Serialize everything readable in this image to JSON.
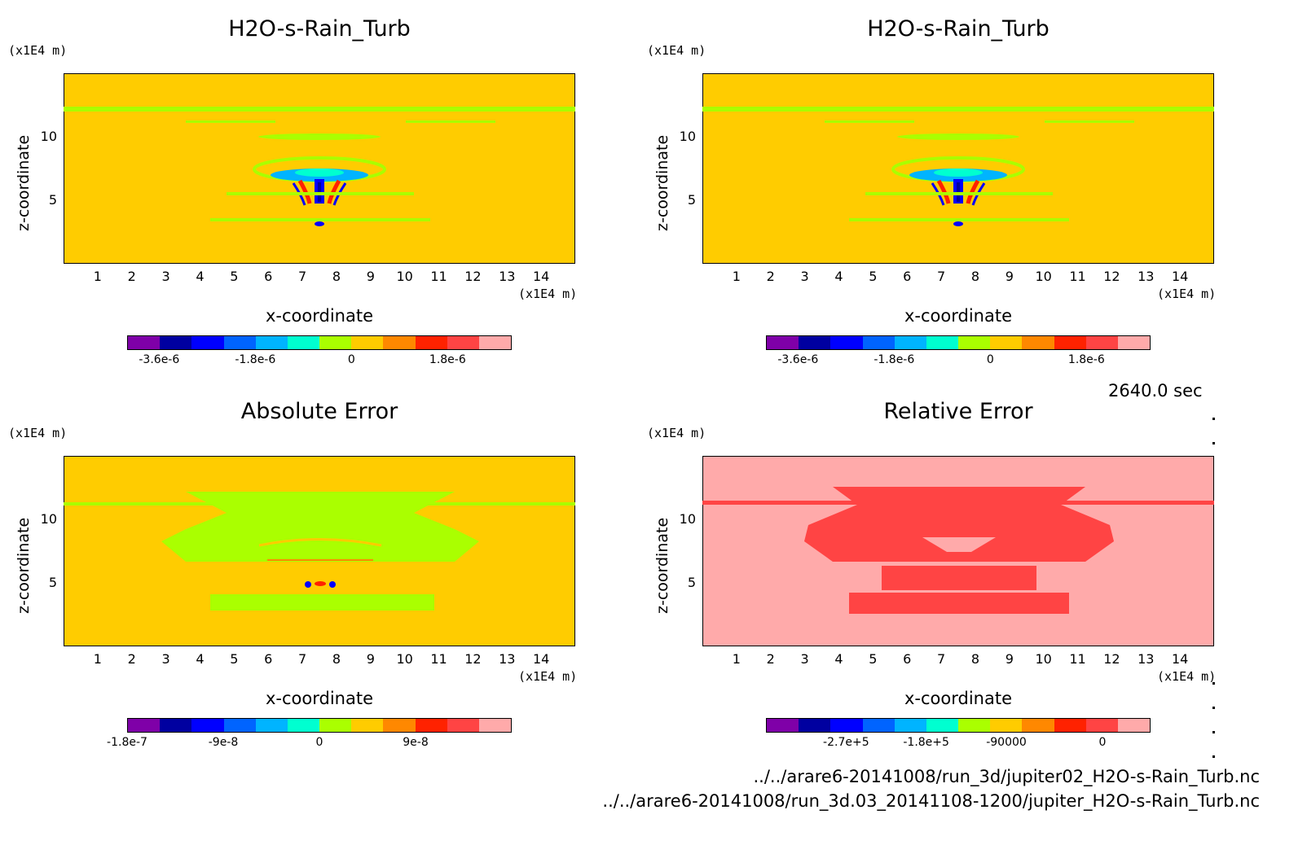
{
  "time_label": "2640.0 sec",
  "footer": {
    "line1": "../../arare6-20141008/run_3d/jupiter02_H2O-s-Rain_Turb.nc",
    "line2": "../../arare6-20141008/run_3d.03_20141108-1200/jupiter_H2O-s-Rain_Turb.nc"
  },
  "chart_data": [
    {
      "type": "heatmap",
      "title": "H2O-s-Rain_Turb",
      "xlabel": "x-coordinate",
      "ylabel": "z-coordinate",
      "xunit": "(x1E4 m)",
      "yunit": "(x1E4 m)",
      "xticks": [
        "1",
        "2",
        "3",
        "4",
        "5",
        "6",
        "7",
        "8",
        "9",
        "10",
        "11",
        "12",
        "13",
        "14"
      ],
      "yticks": [
        "5",
        "10"
      ],
      "xlim": [
        0,
        15
      ],
      "ylim": [
        0,
        15
      ],
      "colorbar": {
        "colors": [
          "#7f00a8",
          "#0000a0",
          "#0000ff",
          "#0064ff",
          "#00b4ff",
          "#00ffd0",
          "#aaff00",
          "#ffcc00",
          "#ff8800",
          "#ff2200",
          "#ff4444",
          "#ffaaaa"
        ],
        "labels": [
          "-3.6e-6",
          "-1.8e-6",
          "0",
          "1.8e-6"
        ]
      },
      "background": "#ffcc00"
    },
    {
      "type": "heatmap",
      "title": "H2O-s-Rain_Turb",
      "xlabel": "x-coordinate",
      "ylabel": "z-coordinate",
      "xunit": "(x1E4 m)",
      "yunit": "(x1E4 m)",
      "xticks": [
        "1",
        "2",
        "3",
        "4",
        "5",
        "6",
        "7",
        "8",
        "9",
        "10",
        "11",
        "12",
        "13",
        "14"
      ],
      "yticks": [
        "5",
        "10"
      ],
      "xlim": [
        0,
        15
      ],
      "ylim": [
        0,
        15
      ],
      "colorbar": {
        "colors": [
          "#7f00a8",
          "#0000a0",
          "#0000ff",
          "#0064ff",
          "#00b4ff",
          "#00ffd0",
          "#aaff00",
          "#ffcc00",
          "#ff8800",
          "#ff2200",
          "#ff4444",
          "#ffaaaa"
        ],
        "labels": [
          "-3.6e-6",
          "-1.8e-6",
          "0",
          "1.8e-6"
        ]
      },
      "background": "#ffcc00"
    },
    {
      "type": "heatmap",
      "title": "Absolute Error",
      "xlabel": "x-coordinate",
      "ylabel": "z-coordinate",
      "xunit": "(x1E4 m)",
      "yunit": "(x1E4 m)",
      "xticks": [
        "1",
        "2",
        "3",
        "4",
        "5",
        "6",
        "7",
        "8",
        "9",
        "10",
        "11",
        "12",
        "13",
        "14"
      ],
      "yticks": [
        "5",
        "10"
      ],
      "xlim": [
        0,
        15
      ],
      "ylim": [
        0,
        15
      ],
      "colorbar": {
        "colors": [
          "#7f00a8",
          "#0000a0",
          "#0000ff",
          "#0064ff",
          "#00b4ff",
          "#00ffd0",
          "#aaff00",
          "#ffcc00",
          "#ff8800",
          "#ff2200",
          "#ff4444",
          "#ffaaaa"
        ],
        "labels": [
          "-1.8e-7",
          "-9e-8",
          "0",
          "9e-8"
        ]
      },
      "background": "#ffcc00"
    },
    {
      "type": "heatmap",
      "title": "Relative Error",
      "xlabel": "x-coordinate",
      "ylabel": "z-coordinate",
      "xunit": "(x1E4 m)",
      "yunit": "(x1E4 m)",
      "xticks": [
        "1",
        "2",
        "3",
        "4",
        "5",
        "6",
        "7",
        "8",
        "9",
        "10",
        "11",
        "12",
        "13",
        "14"
      ],
      "yticks": [
        "5",
        "10"
      ],
      "xlim": [
        0,
        15
      ],
      "ylim": [
        0,
        15
      ],
      "colorbar": {
        "colors": [
          "#7f00a8",
          "#0000a0",
          "#0000ff",
          "#0064ff",
          "#00b4ff",
          "#00ffd0",
          "#aaff00",
          "#ffcc00",
          "#ff8800",
          "#ff2200",
          "#ff4444",
          "#ffaaaa"
        ],
        "labels": [
          "-2.7e+5",
          "-1.8e+5",
          "-90000",
          "0"
        ]
      },
      "background": "#ffaaaa"
    }
  ]
}
